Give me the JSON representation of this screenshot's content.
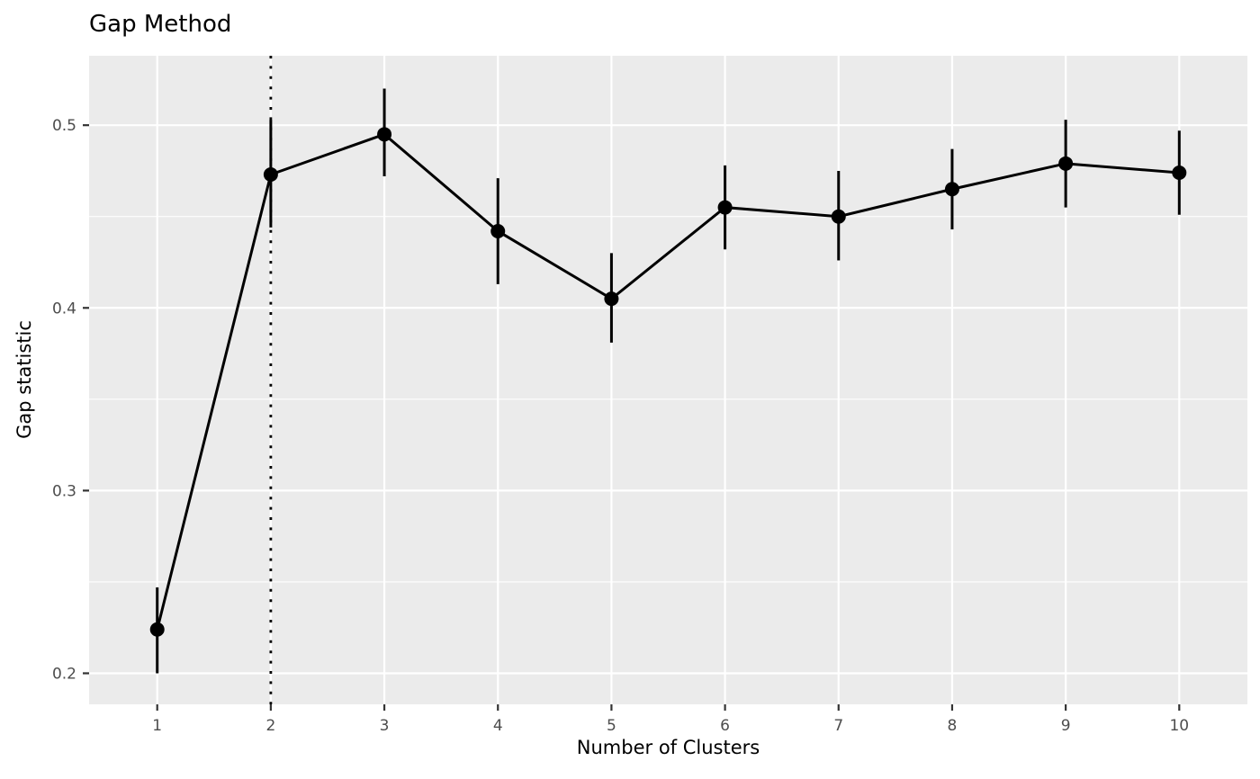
{
  "chart_data": {
    "type": "line",
    "title": "Gap Method",
    "xlabel": "Number of Clusters",
    "ylabel": "Gap statistic",
    "x": [
      1,
      2,
      3,
      4,
      5,
      6,
      7,
      8,
      9,
      10
    ],
    "series": [
      {
        "name": "Gap statistic",
        "values": [
          0.224,
          0.473,
          0.495,
          0.442,
          0.405,
          0.455,
          0.45,
          0.465,
          0.479,
          0.474
        ],
        "error_low": [
          0.2,
          0.444,
          0.472,
          0.413,
          0.381,
          0.432,
          0.426,
          0.443,
          0.455,
          0.451
        ],
        "error_high": [
          0.247,
          0.503,
          0.52,
          0.471,
          0.43,
          0.478,
          0.475,
          0.487,
          0.503,
          0.497
        ]
      }
    ],
    "vline": {
      "x": 2,
      "style": "dotted"
    },
    "xticks": {
      "values": [
        1,
        2,
        3,
        4,
        5,
        6,
        7,
        8,
        9,
        10
      ],
      "labels": [
        "1",
        "2",
        "3",
        "4",
        "5",
        "6",
        "7",
        "8",
        "9",
        "10"
      ]
    },
    "yticks": {
      "values": [
        0.2,
        0.3,
        0.4,
        0.5
      ],
      "labels": [
        "0.2",
        "0.3",
        "0.4",
        "0.5"
      ],
      "minor": [
        0.25,
        0.35,
        0.45
      ]
    },
    "xlim": [
      0.4,
      10.6
    ],
    "ylim": [
      0.183,
      0.538
    ],
    "grid": "white major+minor horizontal and major vertical gridlines on gray panel",
    "legend": "none",
    "colors": {
      "background": "#FFFFFF",
      "panel_background": "#EBEBEB",
      "gridline": "#FFFFFF",
      "data": "#000000",
      "tick_label": "#4D4D4D",
      "tick_mark": "#333333",
      "axis_title": "#000000",
      "title": "#000000"
    }
  }
}
